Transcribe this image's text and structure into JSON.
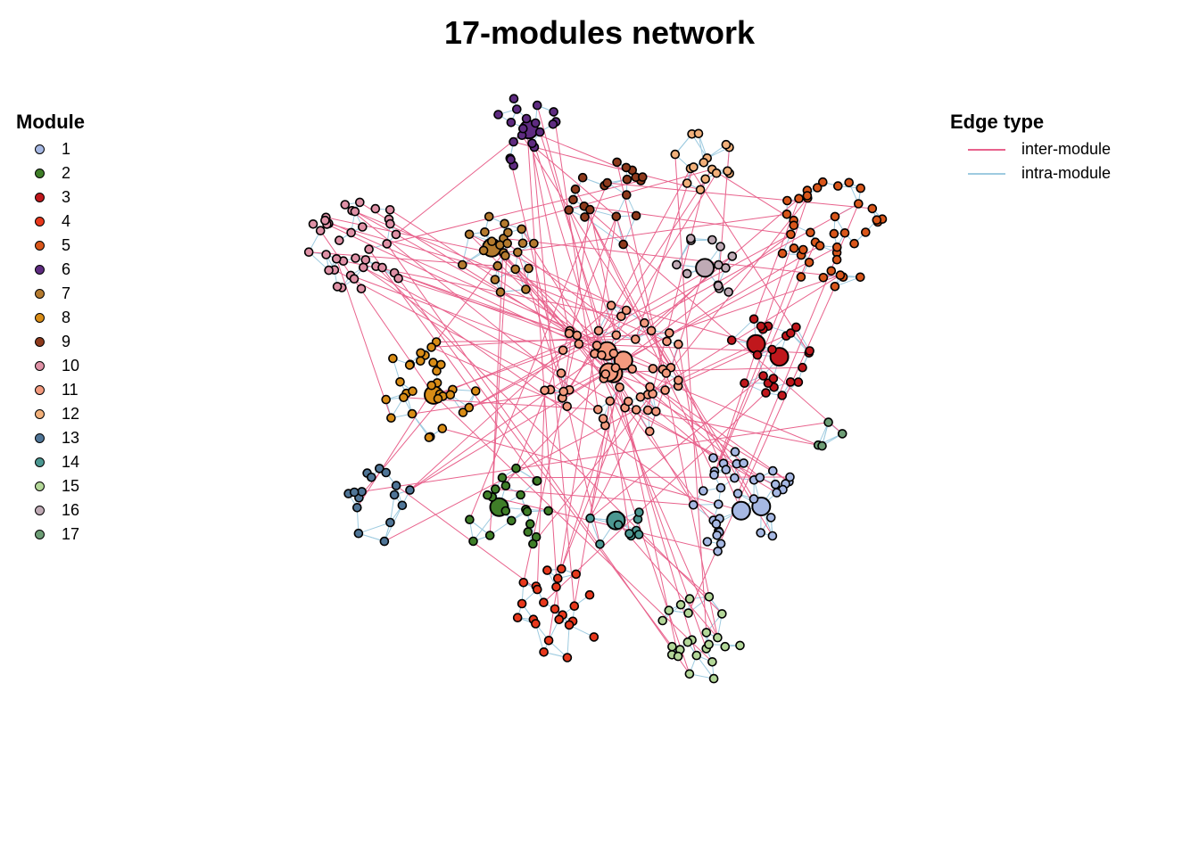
{
  "title": "17-modules network",
  "module_legend": {
    "title": "Module",
    "items": [
      {
        "label": "1",
        "color": "#a6b8e3"
      },
      {
        "label": "2",
        "color": "#3f7e28"
      },
      {
        "label": "3",
        "color": "#c0171c"
      },
      {
        "label": "4",
        "color": "#e8381c"
      },
      {
        "label": "5",
        "color": "#d9561a"
      },
      {
        "label": "6",
        "color": "#5e2b80"
      },
      {
        "label": "7",
        "color": "#b47a2e"
      },
      {
        "label": "8",
        "color": "#d88c16"
      },
      {
        "label": "9",
        "color": "#8e3a1c"
      },
      {
        "label": "10",
        "color": "#df91a6"
      },
      {
        "label": "11",
        "color": "#f39a7e"
      },
      {
        "label": "12",
        "color": "#f2b07a"
      },
      {
        "label": "13",
        "color": "#4f7597"
      },
      {
        "label": "14",
        "color": "#4b9791"
      },
      {
        "label": "15",
        "color": "#b3d798"
      },
      {
        "label": "16",
        "color": "#bfaab5"
      },
      {
        "label": "17",
        "color": "#6d9d75"
      }
    ]
  },
  "edge_legend": {
    "title": "Edge type",
    "items": [
      {
        "label": "inter-module",
        "color": "#e8628c"
      },
      {
        "label": "intra-module",
        "color": "#9ecbe0"
      }
    ]
  }
}
